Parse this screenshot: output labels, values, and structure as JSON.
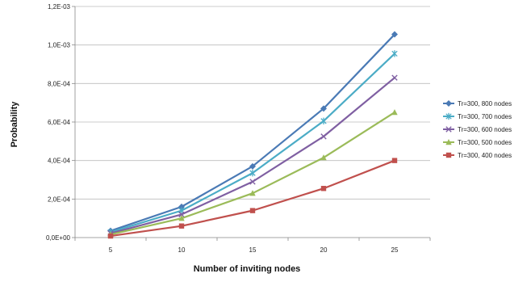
{
  "chart_data": {
    "type": "line",
    "title": "",
    "xlabel": "Number of inviting nodes",
    "ylabel": "Probability",
    "x": [
      5,
      10,
      15,
      20,
      25
    ],
    "ylim": [
      0,
      0.0012
    ],
    "yticks": [
      {
        "value": 0,
        "label": "0,0E+00"
      },
      {
        "value": 0.0002,
        "label": "2,0E-04"
      },
      {
        "value": 0.0004,
        "label": "4,0E-04"
      },
      {
        "value": 0.0006,
        "label": "6,0E-04"
      },
      {
        "value": 0.0008,
        "label": "8,0E-04"
      },
      {
        "value": 0.001,
        "label": "1,0E-03"
      },
      {
        "value": 0.0012,
        "label": "1,2E-03"
      }
    ],
    "grid": "horizontal",
    "legend_position": "right",
    "series": [
      {
        "name": "Tr=300, 800 nodes",
        "color": "#4a7ab5",
        "marker": "diamond",
        "values": [
          3.5e-05,
          0.00016,
          0.00037,
          0.00067,
          0.001055
        ]
      },
      {
        "name": "Tr=300, 700 nodes",
        "color": "#4bacc6",
        "marker": "star",
        "values": [
          2.8e-05,
          0.00014,
          0.000335,
          0.000605,
          0.000955
        ]
      },
      {
        "name": "Tr=300, 600 nodes",
        "color": "#7f5fa2",
        "marker": "x",
        "values": [
          2.2e-05,
          0.00012,
          0.00029,
          0.000525,
          0.00083
        ]
      },
      {
        "name": "Tr=300, 500 nodes",
        "color": "#9bbb59",
        "marker": "triangle",
        "values": [
          1.6e-05,
          0.0001,
          0.00023,
          0.000415,
          0.00065
        ]
      },
      {
        "name": "Tr=300, 400 nodes",
        "color": "#c0504d",
        "marker": "square",
        "values": [
          8e-06,
          6e-05,
          0.00014,
          0.000255,
          0.0004
        ]
      }
    ]
  }
}
